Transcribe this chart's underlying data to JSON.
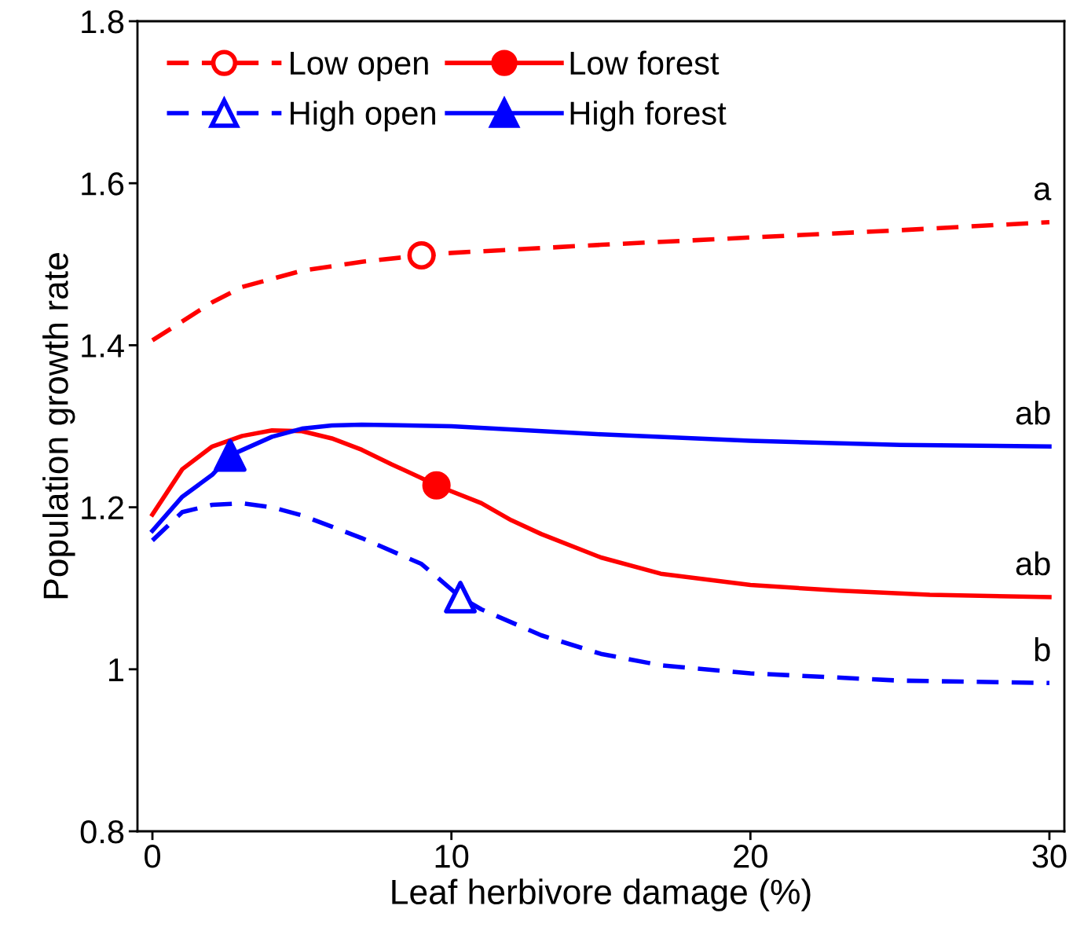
{
  "chart_data": {
    "type": "line",
    "xlabel": "Leaf herbivore damage (%)",
    "ylabel": "Population growth rate",
    "xlim": [
      -0.5,
      30.5
    ],
    "xticks": [
      0,
      10,
      20,
      30
    ],
    "ylim": [
      0.8,
      1.8
    ],
    "yticks": [
      0.8,
      1,
      1.2,
      1.4,
      1.6,
      1.8
    ],
    "grid": false,
    "legend": "top left",
    "series": [
      {
        "name": "Low open",
        "color": "#ff0000",
        "line_style": "dashed",
        "x": [
          0,
          2,
          3,
          5,
          7,
          9,
          10,
          15,
          20,
          25,
          30
        ],
        "values": [
          1.406,
          1.453,
          1.472,
          1.492,
          1.503,
          1.511,
          1.514,
          1.524,
          1.533,
          1.542,
          1.552
        ]
      },
      {
        "name": "High open",
        "color": "#0000ff",
        "line_style": "dashed",
        "x": [
          0,
          1,
          2,
          3,
          4,
          5,
          7,
          9,
          10.3,
          11,
          13,
          15,
          17,
          20,
          25,
          30
        ],
        "values": [
          1.159,
          1.194,
          1.203,
          1.205,
          1.2,
          1.19,
          1.162,
          1.13,
          1.089,
          1.074,
          1.042,
          1.019,
          1.005,
          0.995,
          0.986,
          0.983
        ]
      },
      {
        "name": "Low forest",
        "color": "#ff0000",
        "line_style": "solid",
        "x": [
          0,
          1,
          2,
          3,
          4,
          5,
          6,
          7,
          8,
          9,
          9.5,
          11,
          12,
          13,
          15,
          17,
          20,
          23,
          26,
          30
        ],
        "values": [
          1.191,
          1.247,
          1.275,
          1.288,
          1.295,
          1.294,
          1.285,
          1.271,
          1.253,
          1.236,
          1.227,
          1.205,
          1.184,
          1.167,
          1.138,
          1.118,
          1.104,
          1.097,
          1.092,
          1.089
        ]
      },
      {
        "name": "High forest",
        "color": "#0000ff",
        "line_style": "solid",
        "x": [
          0,
          1,
          2,
          2.6,
          4,
          5,
          6,
          7,
          10,
          15,
          20,
          25,
          30
        ],
        "values": [
          1.171,
          1.213,
          1.24,
          1.264,
          1.287,
          1.297,
          1.301,
          1.302,
          1.3,
          1.29,
          1.282,
          1.277,
          1.275
        ]
      },
      {
        "type": "scatter",
        "color": "#ff0000",
        "marker": "circle",
        "x": [
          9
        ],
        "values": [
          1.511
        ]
      },
      {
        "type": "scatter",
        "color": "#0000ff",
        "marker": "triangle",
        "x": [
          10.3
        ],
        "values": [
          1.089
        ]
      },
      {
        "type": "scatter",
        "color": "#ff0000",
        "marker": "circle",
        "x": [
          9.5
        ],
        "values": [
          1.227
        ]
      },
      {
        "type": "scatter",
        "color": "#0000ff",
        "marker": "triangle",
        "x": [
          2.6
        ],
        "values": [
          1.264
        ]
      }
    ],
    "annotations": [
      "a",
      "ab",
      "ab",
      "b"
    ]
  }
}
